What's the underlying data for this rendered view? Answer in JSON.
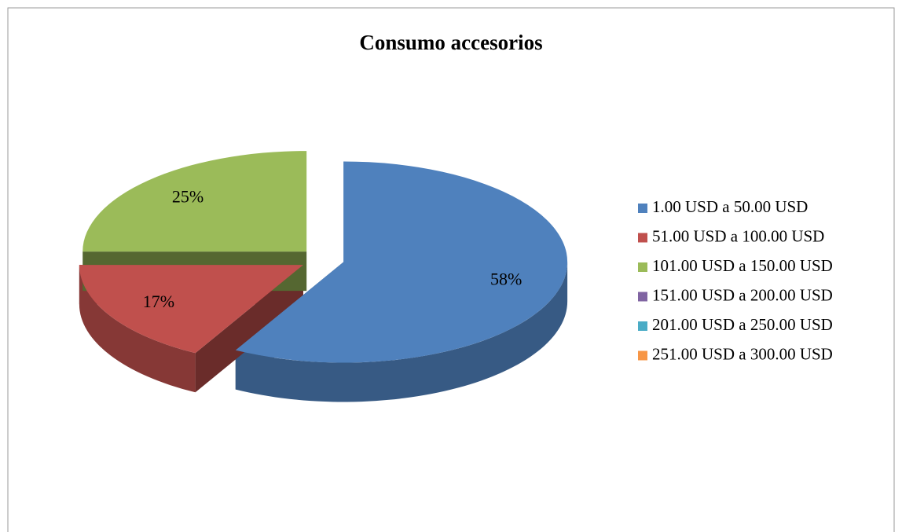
{
  "chart_data": {
    "type": "pie",
    "title": "Consumo accesorios",
    "categories": [
      "1.00 USD a 50.00 USD",
      "51.00 USD a 100.00 USD",
      "101.00 USD a 150.00 USD",
      "151.00 USD a 200.00 USD",
      "201.00 USD a 250.00 USD",
      "251.00 USD a 300.00 USD"
    ],
    "values": [
      58,
      17,
      25,
      0,
      0,
      0
    ],
    "value_labels": [
      "58%",
      "17%",
      "25%",
      null,
      null,
      null
    ],
    "colors": [
      "#4f81bd",
      "#c0504d",
      "#9bbb59",
      "#8064a2",
      "#4bacc6",
      "#f79646"
    ],
    "legend": "right"
  }
}
